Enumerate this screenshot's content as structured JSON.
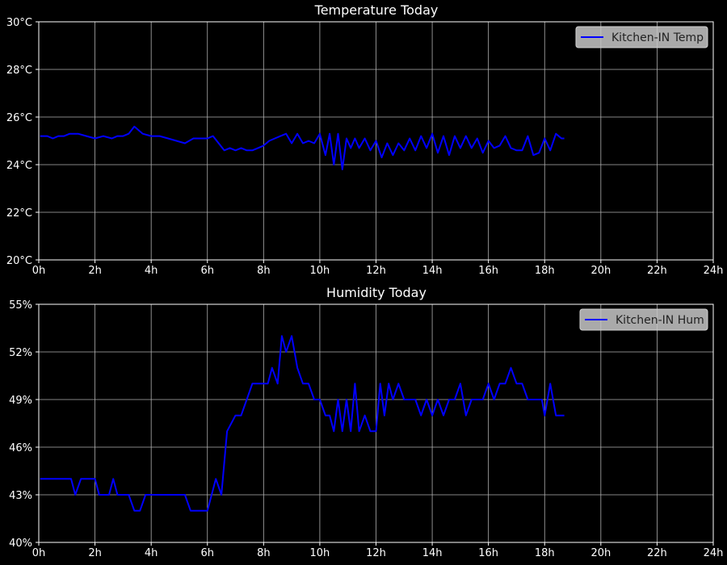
{
  "chart_data": [
    {
      "type": "line",
      "title": "Temperature Today",
      "xlim": [
        0,
        24
      ],
      "ylim": [
        20,
        30
      ],
      "x_ticks": [
        0,
        2,
        4,
        6,
        8,
        10,
        12,
        14,
        16,
        18,
        20,
        22,
        24
      ],
      "x_tick_labels": [
        "0h",
        "2h",
        "4h",
        "6h",
        "8h",
        "10h",
        "12h",
        "14h",
        "16h",
        "18h",
        "20h",
        "22h",
        "24h"
      ],
      "y_ticks": [
        20,
        22,
        24,
        26,
        28,
        30
      ],
      "y_tick_labels": [
        "20°C",
        "22°C",
        "24°C",
        "26°C",
        "28°C",
        "30°C"
      ],
      "grid": true,
      "legend_position": "top-right",
      "series": [
        {
          "name": "Kitchen-IN Temp",
          "color": "#0000ff",
          "x": [
            0.05,
            0.3,
            0.5,
            0.7,
            0.9,
            1.1,
            1.4,
            1.7,
            2.0,
            2.3,
            2.6,
            2.8,
            3.0,
            3.2,
            3.4,
            3.7,
            4.0,
            4.3,
            4.6,
            4.9,
            5.2,
            5.5,
            5.8,
            6.0,
            6.2,
            6.4,
            6.6,
            6.8,
            7.0,
            7.2,
            7.4,
            7.6,
            7.8,
            8.0,
            8.2,
            8.4,
            8.6,
            8.8,
            9.0,
            9.2,
            9.4,
            9.6,
            9.8,
            10.0,
            10.2,
            10.35,
            10.5,
            10.65,
            10.8,
            10.95,
            11.1,
            11.25,
            11.4,
            11.6,
            11.8,
            12.0,
            12.2,
            12.4,
            12.6,
            12.8,
            13.0,
            13.2,
            13.4,
            13.6,
            13.8,
            14.0,
            14.2,
            14.4,
            14.6,
            14.8,
            15.0,
            15.2,
            15.4,
            15.6,
            15.8,
            16.0,
            16.2,
            16.4,
            16.6,
            16.8,
            17.0,
            17.2,
            17.4,
            17.6,
            17.8,
            18.0,
            18.2,
            18.4,
            18.6,
            18.7
          ],
          "y": [
            25.2,
            25.2,
            25.1,
            25.2,
            25.2,
            25.3,
            25.3,
            25.2,
            25.1,
            25.2,
            25.1,
            25.2,
            25.2,
            25.3,
            25.6,
            25.3,
            25.2,
            25.2,
            25.1,
            25.0,
            24.9,
            25.1,
            25.1,
            25.1,
            25.2,
            24.9,
            24.6,
            24.7,
            24.6,
            24.7,
            24.6,
            24.6,
            24.7,
            24.8,
            25.0,
            25.1,
            25.2,
            25.3,
            24.9,
            25.3,
            24.9,
            25.0,
            24.9,
            25.3,
            24.4,
            25.3,
            24.0,
            25.3,
            23.8,
            25.1,
            24.7,
            25.1,
            24.7,
            25.1,
            24.6,
            25.0,
            24.3,
            24.9,
            24.4,
            24.9,
            24.6,
            25.1,
            24.6,
            25.2,
            24.7,
            25.3,
            24.5,
            25.2,
            24.4,
            25.2,
            24.7,
            25.2,
            24.7,
            25.1,
            24.5,
            25.0,
            24.7,
            24.8,
            25.2,
            24.7,
            24.6,
            24.6,
            25.2,
            24.4,
            24.5,
            25.1,
            24.6,
            25.3,
            25.1,
            25.1
          ]
        }
      ]
    },
    {
      "type": "line",
      "title": "Humidity Today",
      "xlim": [
        0,
        24
      ],
      "ylim": [
        40,
        55
      ],
      "x_ticks": [
        0,
        2,
        4,
        6,
        8,
        10,
        12,
        14,
        16,
        18,
        20,
        22,
        24
      ],
      "x_tick_labels": [
        "0h",
        "2h",
        "4h",
        "6h",
        "8h",
        "10h",
        "12h",
        "14h",
        "16h",
        "18h",
        "20h",
        "22h",
        "24h"
      ],
      "y_ticks": [
        40,
        43,
        46,
        49,
        52,
        55
      ],
      "y_tick_labels": [
        "40%",
        "43%",
        "46%",
        "49%",
        "52%",
        "55%"
      ],
      "grid": true,
      "legend_position": "top-right",
      "series": [
        {
          "name": "Kitchen-IN Hum",
          "color": "#0000ff",
          "x": [
            0.05,
            0.5,
            1.0,
            1.15,
            1.3,
            1.5,
            2.0,
            2.15,
            2.3,
            2.5,
            2.65,
            2.8,
            3.0,
            3.2,
            3.4,
            3.6,
            3.8,
            4.0,
            4.5,
            5.0,
            5.2,
            5.4,
            5.6,
            6.0,
            6.15,
            6.3,
            6.5,
            6.7,
            7.0,
            7.2,
            7.4,
            7.6,
            7.8,
            8.0,
            8.15,
            8.3,
            8.5,
            8.65,
            8.8,
            9.0,
            9.2,
            9.4,
            9.6,
            9.8,
            10.0,
            10.2,
            10.35,
            10.5,
            10.65,
            10.8,
            10.95,
            11.1,
            11.25,
            11.4,
            11.6,
            11.8,
            12.0,
            12.15,
            12.3,
            12.45,
            12.6,
            12.8,
            13.0,
            13.2,
            13.4,
            13.6,
            13.8,
            14.0,
            14.2,
            14.4,
            14.6,
            14.8,
            15.0,
            15.2,
            15.4,
            15.6,
            15.8,
            16.0,
            16.2,
            16.4,
            16.6,
            16.8,
            17.0,
            17.2,
            17.4,
            17.55,
            17.7,
            17.9,
            18.0,
            18.2,
            18.4,
            18.7
          ],
          "y": [
            44,
            44,
            44,
            44,
            43,
            44,
            44,
            43,
            43,
            43,
            44,
            43,
            43,
            43,
            42,
            42,
            43,
            43,
            43,
            43,
            43,
            42,
            42,
            42,
            43,
            44,
            43,
            47,
            48,
            48,
            49,
            50,
            50,
            50,
            50,
            51,
            50,
            53,
            52,
            53,
            51,
            50,
            50,
            49,
            49,
            48,
            48,
            47,
            49,
            47,
            49,
            47,
            50,
            47,
            48,
            47,
            47,
            50,
            48,
            50,
            49,
            50,
            49,
            49,
            49,
            48,
            49,
            48,
            49,
            48,
            49,
            49,
            50,
            48,
            49,
            49,
            49,
            50,
            49,
            50,
            50,
            51,
            50,
            50,
            49,
            49,
            49,
            49,
            48,
            50,
            48,
            48
          ]
        }
      ]
    }
  ]
}
